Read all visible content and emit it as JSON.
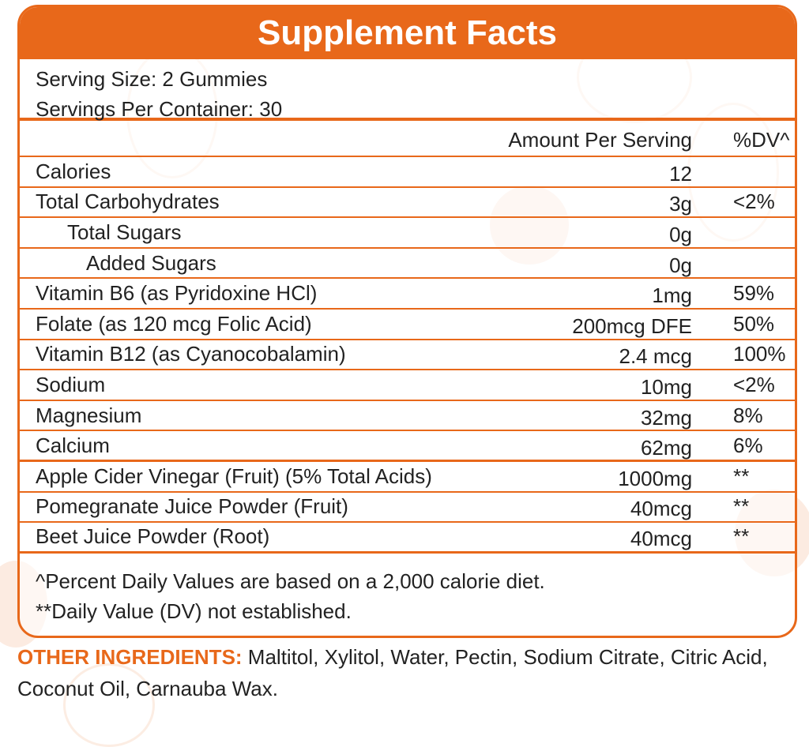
{
  "title": "Supplement Facts",
  "serving_size": "Serving Size: 2 Gummies",
  "servings_per_container": "Servings Per Container: 30",
  "header": {
    "amount": "Amount Per Serving",
    "dv": "%DV^"
  },
  "rows": [
    {
      "name": "Calories",
      "amount": "12",
      "dv": ""
    },
    {
      "name": "Total Carbohydrates",
      "amount": "3g",
      "dv": "<2%"
    },
    {
      "name": "Total Sugars",
      "amount": "0g",
      "dv": ""
    },
    {
      "name": "Added Sugars",
      "amount": "0g",
      "dv": ""
    },
    {
      "name": "Vitamin B6 (as Pyridoxine HCl)",
      "amount": "1mg",
      "dv": "59%"
    },
    {
      "name": "Folate (as 120 mcg Folic Acid)",
      "amount": "200mcg DFE",
      "dv": "50%"
    },
    {
      "name": "Vitamin B12 (as Cyanocobalamin)",
      "amount": "2.4 mcg",
      "dv": "100%"
    },
    {
      "name": "Sodium",
      "amount": "10mg",
      "dv": "<2%"
    },
    {
      "name": "Magnesium",
      "amount": "32mg",
      "dv": "8%"
    },
    {
      "name": "Calcium",
      "amount": "62mg",
      "dv": "6%"
    },
    {
      "name": "Apple Cider Vinegar (Fruit) (5% Total Acids)",
      "amount": "1000mg",
      "dv": "**"
    },
    {
      "name": "Pomegranate Juice Powder (Fruit)",
      "amount": "40mcg",
      "dv": "**"
    },
    {
      "name": "Beet Juice Powder (Root)",
      "amount": "40mcg",
      "dv": "**"
    }
  ],
  "footnotes": [
    "^Percent Daily Values are based on a 2,000 calorie diet.",
    "**Daily Value (DV) not established."
  ],
  "other_ingredients": {
    "label": "OTHER INGREDIENTS:",
    "text": " Maltitol, Xylitol, Water, Pectin, Sodium Citrate, Citric Acid, Coconut Oil, Carnauba Wax."
  },
  "colors": {
    "accent": "#e8681a"
  }
}
